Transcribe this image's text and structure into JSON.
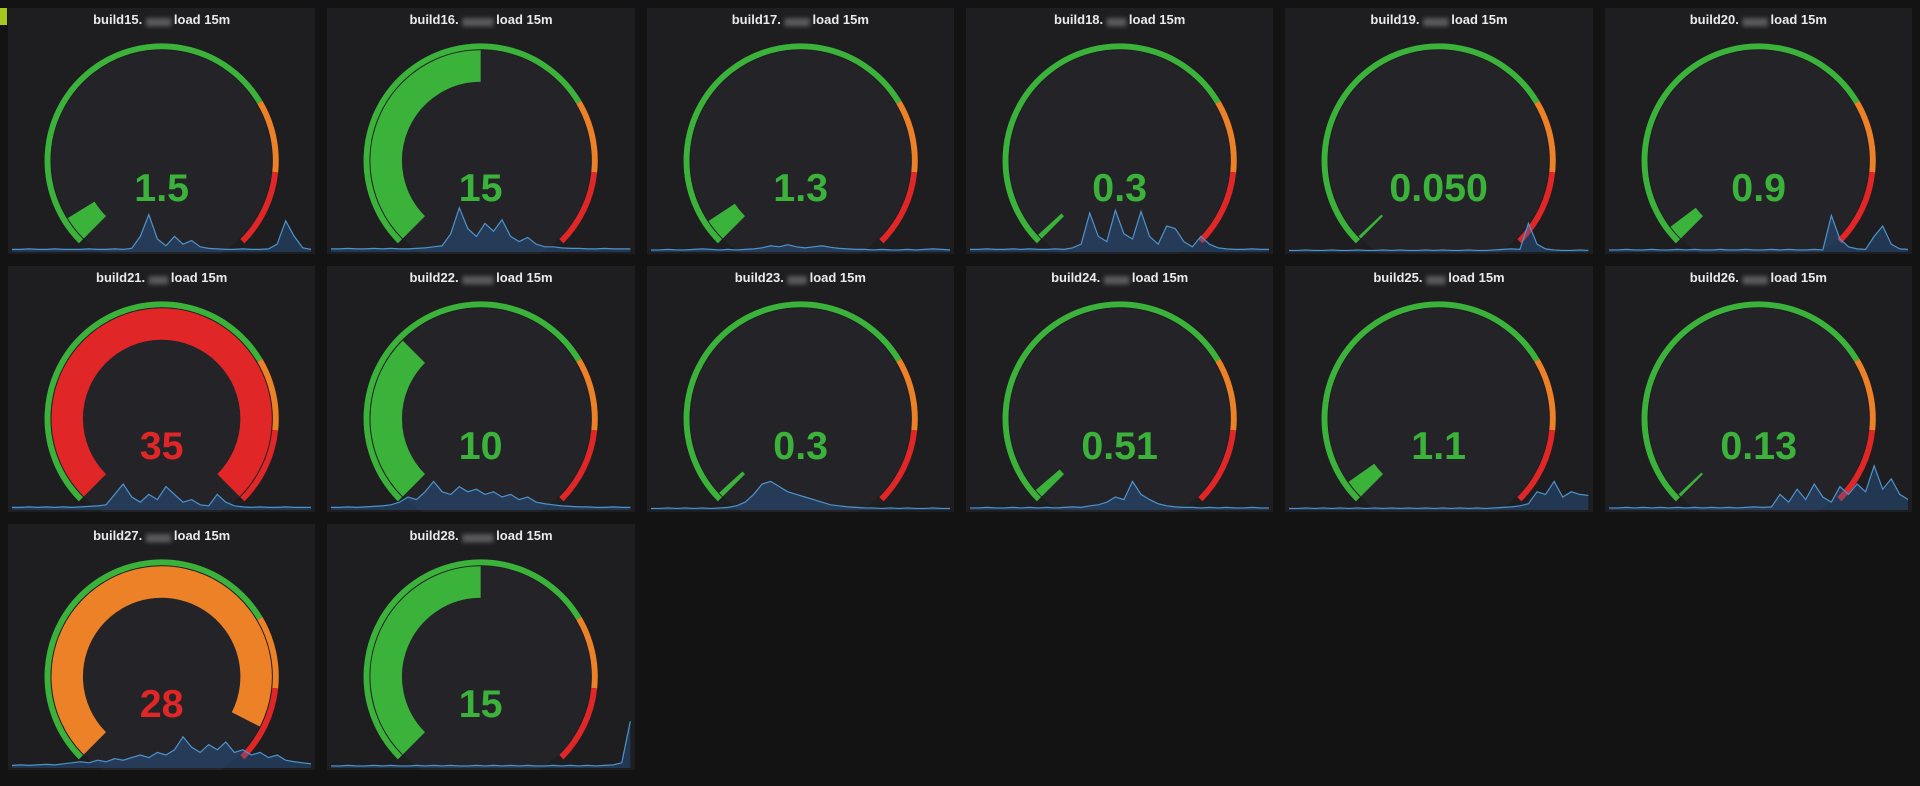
{
  "page": {
    "background": "#131313",
    "panel_background": "#1e1e20",
    "corner_indicator_color": "#a6c81e"
  },
  "gauge_config": {
    "min": 0,
    "max": 30,
    "face_color": "#242428",
    "thresholds": [
      {
        "color_name": "green",
        "from": 0.0,
        "to": 0.72
      },
      {
        "color_name": "orange",
        "from": 0.72,
        "to": 0.855
      },
      {
        "color_name": "red",
        "from": 0.855,
        "to": 1.0
      }
    ],
    "colors": {
      "green": "#3bb33b",
      "orange": "#ed8128",
      "red": "#e02626"
    }
  },
  "sparkline_config": {
    "line_color": "#4e93cc",
    "fill_color": "rgba(40,110,190,0.32)"
  },
  "chart_data": {
    "type": "gauge",
    "metric": "load 15m",
    "gauge_min": 0,
    "gauge_max": 30,
    "legend_position": "none",
    "panels": [
      {
        "id": "build15",
        "title_prefix": "build15.",
        "title_redacted": "▆▆▆▆",
        "title_suffix": "load 15m",
        "value": 1.5,
        "value_text": "1.5",
        "gauge_color": "green",
        "value_color": "green",
        "spark": [
          0.05,
          0.05,
          0.06,
          0.05,
          0.05,
          0.06,
          0.05,
          0.05,
          0.05,
          0.06,
          0.05,
          0.05,
          0.06,
          0.05,
          0.07,
          0.3,
          0.72,
          0.25,
          0.12,
          0.3,
          0.15,
          0.22,
          0.1,
          0.07,
          0.06,
          0.05,
          0.05,
          0.06,
          0.05,
          0.05,
          0.06,
          0.15,
          0.6,
          0.3,
          0.08,
          0.05
        ]
      },
      {
        "id": "build16",
        "title_prefix": "build16.",
        "title_redacted": "▆▆▆▆▆",
        "title_suffix": "load 15m",
        "value": 15,
        "value_text": "15",
        "gauge_color": "green",
        "value_color": "green",
        "spark": [
          0.06,
          0.06,
          0.07,
          0.06,
          0.06,
          0.07,
          0.06,
          0.07,
          0.06,
          0.06,
          0.07,
          0.08,
          0.1,
          0.12,
          0.35,
          0.85,
          0.45,
          0.3,
          0.55,
          0.4,
          0.62,
          0.3,
          0.2,
          0.28,
          0.15,
          0.1,
          0.1,
          0.08,
          0.07,
          0.07,
          0.06,
          0.06,
          0.07,
          0.06,
          0.06,
          0.06
        ]
      },
      {
        "id": "build17",
        "title_prefix": "build17.",
        "title_redacted": "▆▆▆▆",
        "title_suffix": "load 15m",
        "value": 1.3,
        "value_text": "1.3",
        "gauge_color": "green",
        "value_color": "green",
        "spark": [
          0.04,
          0.04,
          0.05,
          0.04,
          0.04,
          0.05,
          0.06,
          0.05,
          0.04,
          0.05,
          0.04,
          0.05,
          0.06,
          0.08,
          0.12,
          0.1,
          0.14,
          0.1,
          0.08,
          0.1,
          0.12,
          0.09,
          0.07,
          0.06,
          0.05,
          0.05,
          0.04,
          0.05,
          0.04,
          0.04,
          0.05,
          0.04,
          0.05,
          0.06,
          0.05,
          0.04
        ]
      },
      {
        "id": "build18",
        "title_prefix": "build18.",
        "title_redacted": "▆▆▆",
        "title_suffix": "load 15m",
        "value": 0.3,
        "value_text": "0.3",
        "gauge_color": "green",
        "value_color": "green",
        "spark": [
          0.05,
          0.05,
          0.06,
          0.05,
          0.05,
          0.06,
          0.05,
          0.06,
          0.05,
          0.05,
          0.06,
          0.05,
          0.08,
          0.15,
          0.75,
          0.3,
          0.2,
          0.8,
          0.35,
          0.25,
          0.78,
          0.3,
          0.15,
          0.5,
          0.45,
          0.2,
          0.1,
          0.3,
          0.15,
          0.08,
          0.06,
          0.05,
          0.05,
          0.06,
          0.05,
          0.05
        ]
      },
      {
        "id": "build19",
        "title_prefix": "build19.",
        "title_redacted": "▆▆▆▆",
        "title_suffix": "load 15m",
        "value": 0.05,
        "value_text": "0.050",
        "gauge_color": "green",
        "value_color": "green",
        "spark": [
          0.03,
          0.03,
          0.04,
          0.03,
          0.03,
          0.04,
          0.03,
          0.03,
          0.04,
          0.03,
          0.03,
          0.04,
          0.03,
          0.04,
          0.03,
          0.03,
          0.04,
          0.03,
          0.04,
          0.03,
          0.03,
          0.04,
          0.03,
          0.03,
          0.04,
          0.05,
          0.06,
          0.05,
          0.55,
          0.15,
          0.06,
          0.04,
          0.03,
          0.03,
          0.04,
          0.03
        ]
      },
      {
        "id": "build20",
        "title_prefix": "build20.",
        "title_redacted": "▆▆▆▆",
        "title_suffix": "load 15m",
        "value": 0.9,
        "value_text": "0.9",
        "gauge_color": "green",
        "value_color": "green",
        "spark": [
          0.04,
          0.04,
          0.05,
          0.04,
          0.04,
          0.05,
          0.04,
          0.04,
          0.05,
          0.04,
          0.05,
          0.04,
          0.04,
          0.05,
          0.04,
          0.04,
          0.05,
          0.04,
          0.04,
          0.05,
          0.04,
          0.05,
          0.04,
          0.04,
          0.05,
          0.04,
          0.7,
          0.25,
          0.1,
          0.06,
          0.05,
          0.3,
          0.5,
          0.15,
          0.06,
          0.05
        ]
      },
      {
        "id": "build21",
        "title_prefix": "build21.",
        "title_redacted": "▆▆▆",
        "title_suffix": "load 15m",
        "value": 35,
        "value_text": "35",
        "gauge_color": "red",
        "value_color": "red",
        "spark": [
          0.05,
          0.05,
          0.06,
          0.05,
          0.06,
          0.05,
          0.06,
          0.05,
          0.06,
          0.07,
          0.08,
          0.1,
          0.3,
          0.5,
          0.25,
          0.15,
          0.3,
          0.2,
          0.45,
          0.3,
          0.15,
          0.2,
          0.1,
          0.08,
          0.3,
          0.15,
          0.08,
          0.06,
          0.05,
          0.06,
          0.05,
          0.05,
          0.06,
          0.05,
          0.05,
          0.05
        ]
      },
      {
        "id": "build22",
        "title_prefix": "build22.",
        "title_redacted": "▆▆▆▆▆",
        "title_suffix": "load 15m",
        "value": 10,
        "value_text": "10",
        "gauge_color": "green",
        "value_color": "green",
        "spark": [
          0.05,
          0.05,
          0.06,
          0.05,
          0.06,
          0.07,
          0.08,
          0.1,
          0.15,
          0.25,
          0.2,
          0.35,
          0.55,
          0.35,
          0.3,
          0.45,
          0.35,
          0.4,
          0.3,
          0.35,
          0.25,
          0.3,
          0.2,
          0.25,
          0.15,
          0.12,
          0.1,
          0.08,
          0.07,
          0.06,
          0.06,
          0.05,
          0.05,
          0.06,
          0.05,
          0.05
        ]
      },
      {
        "id": "build23",
        "title_prefix": "build23.",
        "title_redacted": "▆▆▆",
        "title_suffix": "load 15m",
        "value": 0.3,
        "value_text": "0.3",
        "gauge_color": "green",
        "value_color": "green",
        "spark": [
          0.03,
          0.03,
          0.04,
          0.03,
          0.04,
          0.03,
          0.04,
          0.03,
          0.04,
          0.05,
          0.08,
          0.15,
          0.3,
          0.5,
          0.55,
          0.45,
          0.35,
          0.3,
          0.25,
          0.2,
          0.15,
          0.1,
          0.08,
          0.06,
          0.05,
          0.04,
          0.04,
          0.03,
          0.04,
          0.03,
          0.04,
          0.03,
          0.03,
          0.04,
          0.03,
          0.03
        ]
      },
      {
        "id": "build24",
        "title_prefix": "build24.",
        "title_redacted": "▆▆▆▆",
        "title_suffix": "load 15m",
        "value": 0.51,
        "value_text": "0.51",
        "gauge_color": "green",
        "value_color": "green",
        "spark": [
          0.04,
          0.04,
          0.05,
          0.04,
          0.04,
          0.05,
          0.04,
          0.05,
          0.04,
          0.05,
          0.04,
          0.05,
          0.06,
          0.05,
          0.08,
          0.1,
          0.15,
          0.25,
          0.2,
          0.55,
          0.3,
          0.2,
          0.12,
          0.08,
          0.06,
          0.05,
          0.05,
          0.04,
          0.05,
          0.04,
          0.05,
          0.04,
          0.04,
          0.05,
          0.04,
          0.04
        ]
      },
      {
        "id": "build25",
        "title_prefix": "build25.",
        "title_redacted": "▆▆▆",
        "title_suffix": "load 15m",
        "value": 1.1,
        "value_text": "1.1",
        "gauge_color": "green",
        "value_color": "green",
        "spark": [
          0.03,
          0.03,
          0.04,
          0.03,
          0.04,
          0.03,
          0.04,
          0.03,
          0.04,
          0.03,
          0.04,
          0.03,
          0.04,
          0.03,
          0.04,
          0.03,
          0.04,
          0.03,
          0.04,
          0.03,
          0.04,
          0.03,
          0.04,
          0.03,
          0.04,
          0.05,
          0.06,
          0.08,
          0.12,
          0.35,
          0.3,
          0.55,
          0.25,
          0.35,
          0.3,
          0.28
        ]
      },
      {
        "id": "build26",
        "title_prefix": "build26.",
        "title_redacted": "▆▆▆▆",
        "title_suffix": "load 15m",
        "value": 0.13,
        "value_text": "0.13",
        "gauge_color": "green",
        "value_color": "green",
        "spark": [
          0.04,
          0.04,
          0.05,
          0.04,
          0.05,
          0.04,
          0.05,
          0.04,
          0.05,
          0.04,
          0.05,
          0.04,
          0.05,
          0.04,
          0.05,
          0.04,
          0.05,
          0.06,
          0.05,
          0.06,
          0.3,
          0.15,
          0.4,
          0.2,
          0.5,
          0.25,
          0.15,
          0.45,
          0.3,
          0.5,
          0.35,
          0.85,
          0.4,
          0.6,
          0.3,
          0.2
        ]
      },
      {
        "id": "build27",
        "title_prefix": "build27.",
        "title_redacted": "▆▆▆▆",
        "title_suffix": "load 15m",
        "value": 28,
        "value_text": "28",
        "gauge_color": "orange",
        "value_color": "red",
        "spark": [
          0.05,
          0.06,
          0.05,
          0.06,
          0.07,
          0.06,
          0.08,
          0.1,
          0.12,
          0.1,
          0.15,
          0.12,
          0.18,
          0.15,
          0.2,
          0.25,
          0.2,
          0.3,
          0.25,
          0.35,
          0.6,
          0.4,
          0.3,
          0.45,
          0.35,
          0.5,
          0.3,
          0.35,
          0.25,
          0.3,
          0.2,
          0.25,
          0.15,
          0.12,
          0.1,
          0.08
        ]
      },
      {
        "id": "build28",
        "title_prefix": "build28.",
        "title_redacted": "▆▆▆▆▆",
        "title_suffix": "load 15m",
        "value": 15,
        "value_text": "15",
        "gauge_color": "green",
        "value_color": "green",
        "spark": [
          0.04,
          0.04,
          0.05,
          0.04,
          0.04,
          0.05,
          0.04,
          0.05,
          0.04,
          0.04,
          0.05,
          0.04,
          0.05,
          0.04,
          0.05,
          0.04,
          0.04,
          0.05,
          0.04,
          0.05,
          0.04,
          0.05,
          0.04,
          0.05,
          0.04,
          0.04,
          0.05,
          0.04,
          0.05,
          0.04,
          0.05,
          0.04,
          0.05,
          0.06,
          0.1,
          0.9
        ]
      }
    ]
  }
}
